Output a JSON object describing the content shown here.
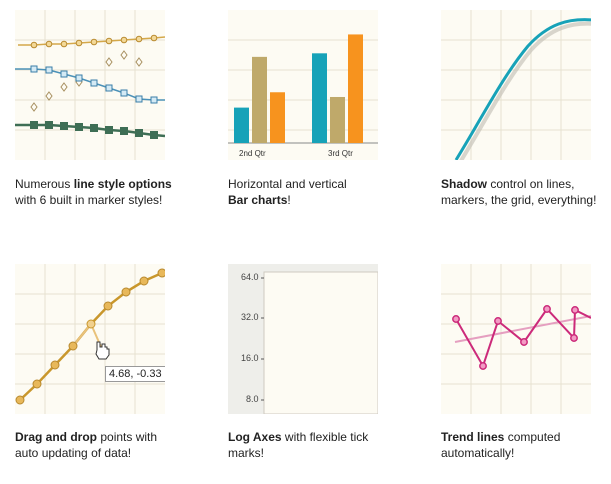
{
  "features": [
    {
      "id": "line-styles",
      "caption": {
        "pre": "Numerous ",
        "bold": "line style options",
        "post": " with 6 built in marker styles!"
      }
    },
    {
      "id": "bar-charts",
      "caption": {
        "pre": "Horizontal and vertical ",
        "bold": "Bar charts",
        "post": "!"
      },
      "chart_data": {
        "type": "bar",
        "categories": [
          "2nd Qtr",
          "3rd Qtr"
        ],
        "series": [
          {
            "values": [
              3.0,
              7.6
            ],
            "color": "#17a2b8"
          },
          {
            "values": [
              7.3,
              3.9
            ],
            "color": "#bfa96a"
          },
          {
            "values": [
              4.3,
              9.2
            ],
            "color": "#f7931e"
          }
        ],
        "ylim": [
          0,
          10
        ]
      }
    },
    {
      "id": "shadow",
      "caption": {
        "pre": "",
        "bold": "Shadow",
        "post": " control on lines, markers, the grid, everything!"
      }
    },
    {
      "id": "drag-drop",
      "caption": {
        "pre": "",
        "bold": "Drag and drop",
        "post": " points with auto updating of data!"
      },
      "tooltip": "4.68, -0.33"
    },
    {
      "id": "log-axes",
      "caption": {
        "pre": "",
        "bold": "Log Axes",
        "post": " with flexible tick marks!"
      },
      "ticks": [
        "64.0",
        "32.0",
        "16.0",
        "8.0"
      ]
    },
    {
      "id": "trend-lines",
      "caption": {
        "pre": "",
        "bold": "Trend lines",
        "post": " computed automatically!"
      }
    }
  ],
  "colors": {
    "tile_bg": "#fdfbf3",
    "grid": "#e6e1d0",
    "teal": "#17a2b8",
    "gold": "#d4a84a",
    "magenta": "#cc2a7a"
  }
}
